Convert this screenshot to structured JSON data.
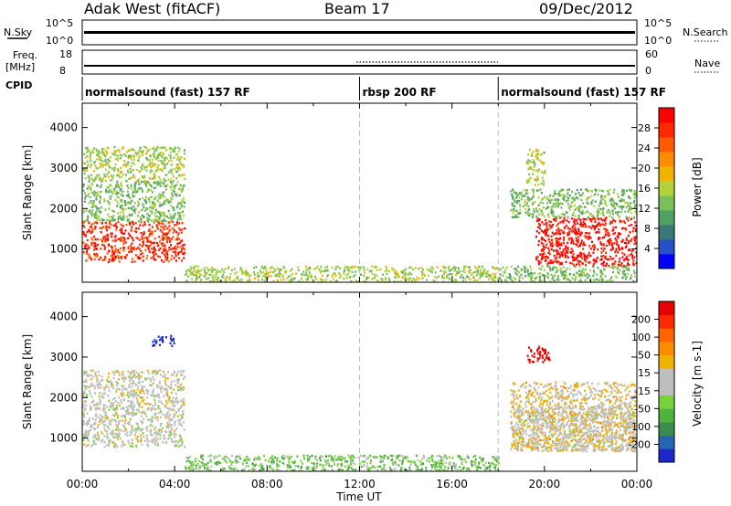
{
  "header": {
    "station": "Adak West (fitACF)",
    "beam": "Beam 17",
    "date": "09/Dec/2012"
  },
  "status_panels": {
    "nsky_label": "N.Sky",
    "nsky_ticks": [
      "10^5",
      "10^0"
    ],
    "nsearch_label": "N.Search",
    "nsearch_ticks": [
      "10^5",
      "10^0"
    ],
    "freq_label": "Freq.",
    "freq_unit": "[MHz]",
    "freq_ticks": [
      "18",
      "8"
    ],
    "nave_label": "Nave",
    "nave_ticks": [
      "60",
      "0"
    ],
    "cpid_label": "CPID"
  },
  "cpid_segments": [
    {
      "label": "normalsound (fast) 157 RF",
      "start_hour": 0,
      "end_hour": 12
    },
    {
      "label": "rbsp 200 RF",
      "start_hour": 12,
      "end_hour": 18
    },
    {
      "label": "normalsound (fast) 157 RF",
      "start_hour": 18,
      "end_hour": 24
    }
  ],
  "time_axis": {
    "label": "Time UT",
    "ticks": [
      "00:00",
      "04:00",
      "08:00",
      "12:00",
      "16:00",
      "20:00",
      "00:00"
    ]
  },
  "power_colorbar": {
    "label": "Power [dB]",
    "ticks": [
      "28",
      "24",
      "20",
      "16",
      "12",
      "8",
      "4"
    ],
    "colors": [
      "#0000ff",
      "#2850c8",
      "#3c7878",
      "#50a064",
      "#7ac05a",
      "#b4d23c",
      "#f0b400",
      "#ff8c00",
      "#ff5a00",
      "#ff2800",
      "#ff0000"
    ]
  },
  "velocity_colorbar": {
    "label": "Velocity [m s-1]",
    "ticks": [
      "200",
      "100",
      "50",
      "15",
      "-15",
      "-50",
      "-100",
      "-200"
    ],
    "colors": [
      "#1e28c8",
      "#2864b4",
      "#3c8c50",
      "#50b43c",
      "#78d23c",
      "#bebebe",
      "#bebebe",
      "#f0b400",
      "#ff8c00",
      "#ff6400",
      "#ff2800",
      "#e60000"
    ]
  },
  "chart_data": [
    {
      "type": "heatmap",
      "title": "Power",
      "xlabel": "Time UT",
      "ylabel": "Slant Range [km]",
      "xlim": [
        0,
        24
      ],
      "ylim": [
        180,
        4600
      ],
      "y_ticks": [
        1000,
        2000,
        3000,
        4000
      ],
      "colorbar_range": [
        0,
        30
      ],
      "colorbar_unit": "dB",
      "regions": [
        {
          "t0": 0.0,
          "t1": 4.4,
          "r0": 700,
          "r1": 1700,
          "level": 26
        },
        {
          "t0": 0.0,
          "t1": 4.4,
          "r0": 1700,
          "r1": 2700,
          "level": 12
        },
        {
          "t0": 0.0,
          "t1": 4.4,
          "r0": 2700,
          "r1": 3550,
          "level": 14
        },
        {
          "t0": 4.4,
          "t1": 18.0,
          "r0": 180,
          "r1": 600,
          "level": 14
        },
        {
          "t0": 19.6,
          "t1": 24.0,
          "r0": 600,
          "r1": 1800,
          "level": 28
        },
        {
          "t0": 18.5,
          "t1": 24.0,
          "r0": 1800,
          "r1": 2500,
          "level": 12
        },
        {
          "t0": 19.2,
          "t1": 20.0,
          "r0": 2600,
          "r1": 3500,
          "level": 14
        },
        {
          "t0": 18.0,
          "t1": 24.0,
          "r0": 180,
          "r1": 600,
          "level": 12
        }
      ]
    },
    {
      "type": "heatmap",
      "title": "Velocity",
      "xlabel": "Time UT",
      "ylabel": "Slant Range [km]",
      "xlim": [
        0,
        24
      ],
      "ylim": [
        180,
        4600
      ],
      "y_ticks": [
        1000,
        2000,
        3000,
        4000
      ],
      "colorbar_range": [
        -200,
        200
      ],
      "colorbar_unit": "m s-1",
      "regions": [
        {
          "t0": 0.0,
          "t1": 4.4,
          "r0": 800,
          "r1": 1750,
          "level": 0
        },
        {
          "t0": 0.0,
          "t1": 4.4,
          "r0": 1750,
          "r1": 2700,
          "level": 5
        },
        {
          "t0": 3.0,
          "t1": 4.0,
          "r0": 3300,
          "r1": 3550,
          "level": -200
        },
        {
          "t0": 4.4,
          "t1": 18.0,
          "r0": 180,
          "r1": 600,
          "level": -60
        },
        {
          "t0": 18.8,
          "t1": 24.0,
          "r0": 700,
          "r1": 1800,
          "level": 0
        },
        {
          "t0": 18.5,
          "t1": 24.0,
          "r0": 700,
          "r1": 2400,
          "level": 30
        },
        {
          "t0": 19.2,
          "t1": 20.2,
          "r0": 2900,
          "r1": 3300,
          "level": 200
        }
      ]
    }
  ]
}
